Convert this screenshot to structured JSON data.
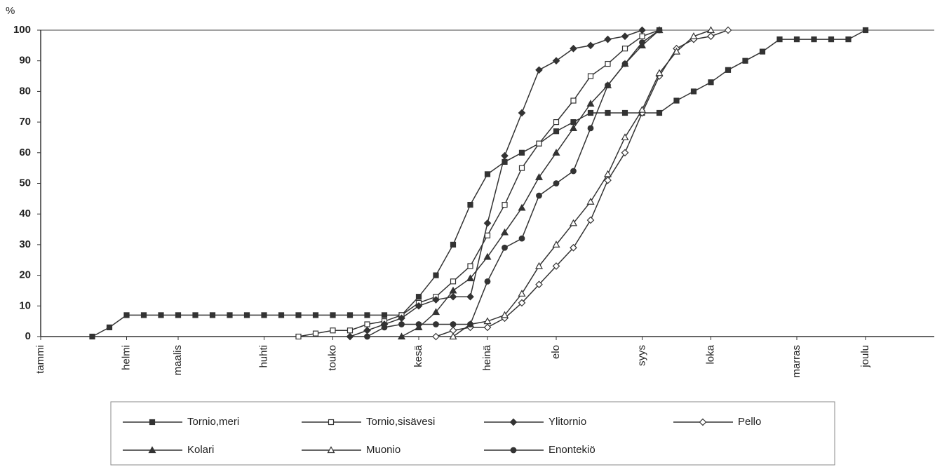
{
  "chart_data": {
    "type": "line",
    "y_label": "%",
    "xlim": [
      0,
      52
    ],
    "ylim": [
      0,
      100
    ],
    "xticks": [
      {
        "value": 0,
        "label": "tammi"
      },
      {
        "value": 5,
        "label": "helmi"
      },
      {
        "value": 8,
        "label": "maalis"
      },
      {
        "value": 13,
        "label": "huhti"
      },
      {
        "value": 17,
        "label": "touko"
      },
      {
        "value": 22,
        "label": "kesä"
      },
      {
        "value": 26,
        "label": "heinä"
      },
      {
        "value": 30,
        "label": "elo"
      },
      {
        "value": 35,
        "label": "syys"
      },
      {
        "value": 39,
        "label": "loka"
      },
      {
        "value": 44,
        "label": "marras"
      },
      {
        "value": 48,
        "label": "joulu"
      }
    ],
    "yticks": [
      0,
      10,
      20,
      30,
      40,
      50,
      60,
      70,
      80,
      90,
      100
    ],
    "grid": false,
    "series": [
      {
        "name": "Tornio,meri",
        "color": "#333333",
        "marker": "square",
        "filled": true,
        "x": [
          3,
          4,
          5,
          6,
          7,
          8,
          9,
          10,
          11,
          12,
          13,
          14,
          15,
          16,
          17,
          18,
          19,
          20,
          21,
          22,
          23,
          24,
          25,
          26,
          27,
          28,
          29,
          30,
          31,
          32,
          33,
          34,
          35,
          36,
          37,
          38,
          39,
          40,
          41,
          42,
          43,
          44,
          45,
          46,
          47,
          48
        ],
        "values": [
          0,
          3,
          7,
          7,
          7,
          7,
          7,
          7,
          7,
          7,
          7,
          7,
          7,
          7,
          7,
          7,
          7,
          7,
          7,
          13,
          20,
          30,
          43,
          53,
          57,
          60,
          63,
          67,
          70,
          73,
          73,
          73,
          73,
          73,
          77,
          80,
          83,
          87,
          90,
          93,
          97,
          97,
          97,
          97,
          97,
          100
        ]
      },
      {
        "name": "Tornio,sisävesi",
        "color": "#333333",
        "marker": "square",
        "filled": false,
        "x": [
          15,
          16,
          17,
          18,
          19,
          20,
          21,
          22,
          23,
          24,
          25,
          26,
          27,
          28,
          29,
          30,
          31,
          32,
          33,
          34,
          35,
          36
        ],
        "values": [
          0,
          1,
          2,
          2,
          4,
          5,
          7,
          11,
          13,
          18,
          23,
          33,
          43,
          55,
          63,
          70,
          77,
          85,
          89,
          94,
          98,
          100
        ]
      },
      {
        "name": "Ylitornio",
        "color": "#333333",
        "marker": "diamond",
        "filled": true,
        "x": [
          18,
          19,
          20,
          21,
          22,
          23,
          24,
          25,
          26,
          27,
          28,
          29,
          30,
          31,
          32,
          33,
          34,
          35
        ],
        "values": [
          0,
          2,
          4,
          6,
          10,
          12,
          13,
          13,
          37,
          59,
          73,
          87,
          90,
          94,
          95,
          97,
          98,
          100
        ]
      },
      {
        "name": "Pello",
        "color": "#333333",
        "marker": "diamond",
        "filled": false,
        "x": [
          23,
          24,
          25,
          26,
          27,
          28,
          29,
          30,
          31,
          32,
          33,
          34,
          35,
          36,
          37,
          38,
          39,
          40
        ],
        "values": [
          0,
          2,
          3,
          3,
          6,
          11,
          17,
          23,
          29,
          38,
          51,
          60,
          73,
          85,
          94,
          97,
          98,
          100
        ]
      },
      {
        "name": "Kolari",
        "color": "#333333",
        "marker": "triangle",
        "filled": true,
        "x": [
          21,
          22,
          23,
          24,
          25,
          26,
          27,
          28,
          29,
          30,
          31,
          32,
          33,
          34,
          35,
          36
        ],
        "values": [
          0,
          3,
          8,
          15,
          19,
          26,
          34,
          42,
          52,
          60,
          68,
          76,
          82,
          89,
          95,
          100
        ]
      },
      {
        "name": "Muonio",
        "color": "#333333",
        "marker": "triangle",
        "filled": false,
        "x": [
          24,
          25,
          26,
          27,
          28,
          29,
          30,
          31,
          32,
          33,
          34,
          35,
          36,
          37,
          38,
          39
        ],
        "values": [
          0,
          4,
          5,
          7,
          14,
          23,
          30,
          37,
          44,
          53,
          65,
          74,
          86,
          93,
          98,
          100
        ]
      },
      {
        "name": "Enontekiö",
        "color": "#333333",
        "marker": "circle",
        "filled": true,
        "x": [
          19,
          20,
          21,
          22,
          23,
          24,
          25,
          26,
          27,
          28,
          29,
          30,
          31,
          32,
          33,
          34,
          35,
          36
        ],
        "values": [
          0,
          3,
          4,
          4,
          4,
          4,
          4,
          18,
          29,
          32,
          46,
          50,
          54,
          68,
          82,
          89,
          96,
          100
        ]
      }
    ]
  }
}
